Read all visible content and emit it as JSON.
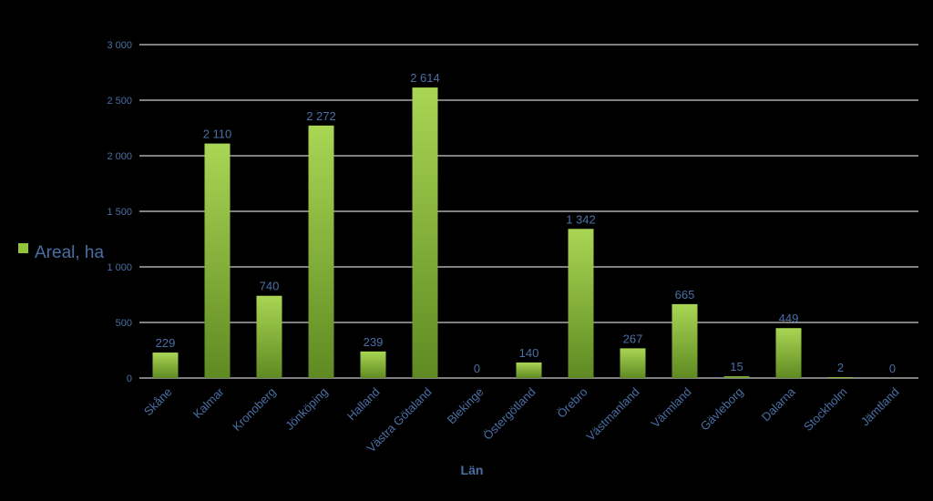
{
  "chart_data": {
    "type": "bar",
    "categories": [
      "Skåne",
      "Kalmar",
      "Kronoberg",
      "Jönköping",
      "Halland",
      "Västra Götaland",
      "Blekinge",
      "Östergötland",
      "Örebro",
      "Västmanland",
      "Värmland",
      "Gävleborg",
      "Dalarna",
      "Stockholm",
      "Jämtland"
    ],
    "series": [
      {
        "name": "Areal, ha",
        "values": [
          229,
          2110,
          740,
          2272,
          239,
          2614,
          0,
          140,
          1342,
          267,
          665,
          15,
          449,
          2,
          0
        ],
        "labels": [
          "229",
          "2 110",
          "740",
          "2 272",
          "239",
          "2 614",
          "0",
          "140",
          "1 342",
          "267",
          "665",
          "15",
          "449",
          "2",
          "0"
        ]
      }
    ],
    "title": "",
    "xlabel": "Län",
    "ylabel": "",
    "ylim": [
      0,
      3000
    ],
    "yticks": [
      0,
      500,
      1000,
      1500,
      2000,
      2500,
      3000
    ],
    "ytick_labels": [
      "0",
      "500",
      "1 000",
      "1 500",
      "2 000",
      "2 500",
      "3 000"
    ],
    "grid": true,
    "legend_position": "left",
    "colors": {
      "background": "#000000",
      "bar_top": "#a9d654",
      "bar_bottom": "#5f8a22",
      "text": "#4a6fa5",
      "gridline": "#ffffff",
      "legend_swatch": "#92c43a"
    }
  }
}
